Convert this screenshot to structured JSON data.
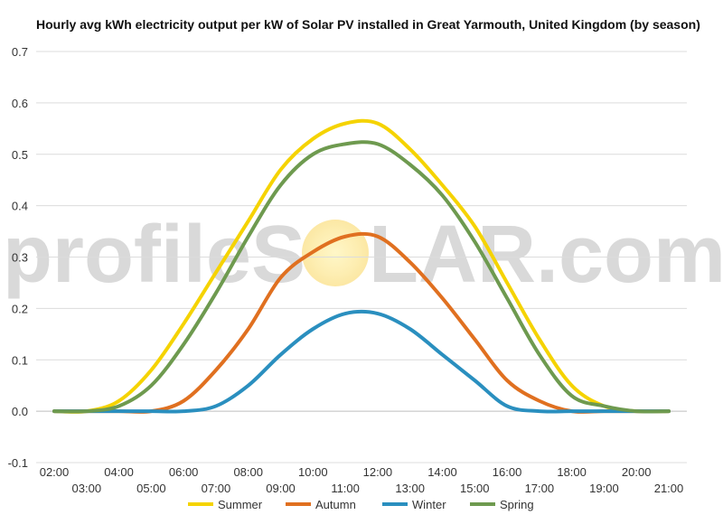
{
  "chart_data": {
    "type": "line",
    "title": "Hourly avg kWh electricity output per kW of Solar PV installed in Great Yarmouth, United Kingdom (by season)",
    "xlabel": "",
    "ylabel": "",
    "ylim": [
      -0.1,
      0.7
    ],
    "yticks": [
      "0.7",
      "0.6",
      "0.5",
      "0.4",
      "0.3",
      "0.2",
      "0.1",
      "0.0",
      "-0.1"
    ],
    "ytick_values": [
      0.7,
      0.6,
      0.5,
      0.4,
      0.3,
      0.2,
      0.1,
      0.0,
      -0.1
    ],
    "x": [
      "02:00",
      "03:00",
      "04:00",
      "05:00",
      "06:00",
      "07:00",
      "08:00",
      "09:00",
      "10:00",
      "11:00",
      "12:00",
      "13:00",
      "14:00",
      "15:00",
      "16:00",
      "17:00",
      "18:00",
      "19:00",
      "20:00",
      "21:00"
    ],
    "grid": true,
    "legend_position": "bottom",
    "series": [
      {
        "name": "Summer",
        "color": "#f5d300",
        "values": [
          0.0,
          0.0,
          0.02,
          0.08,
          0.17,
          0.27,
          0.37,
          0.47,
          0.53,
          0.56,
          0.56,
          0.51,
          0.44,
          0.36,
          0.25,
          0.14,
          0.05,
          0.01,
          0.0,
          0.0
        ]
      },
      {
        "name": "Autumn",
        "color": "#e07020",
        "values": [
          0.0,
          0.0,
          0.0,
          0.0,
          0.02,
          0.08,
          0.16,
          0.26,
          0.31,
          0.34,
          0.34,
          0.29,
          0.22,
          0.14,
          0.06,
          0.02,
          0.0,
          0.0,
          0.0,
          0.0
        ]
      },
      {
        "name": "Winter",
        "color": "#2a8fbf",
        "values": [
          0.0,
          0.0,
          0.0,
          0.0,
          0.0,
          0.01,
          0.05,
          0.11,
          0.16,
          0.19,
          0.19,
          0.16,
          0.11,
          0.06,
          0.01,
          0.0,
          0.0,
          0.0,
          0.0,
          0.0
        ]
      },
      {
        "name": "Spring",
        "color": "#6e9a4f",
        "values": [
          0.0,
          0.0,
          0.01,
          0.05,
          0.13,
          0.23,
          0.34,
          0.44,
          0.5,
          0.52,
          0.52,
          0.48,
          0.42,
          0.33,
          0.22,
          0.11,
          0.03,
          0.01,
          0.0,
          0.0
        ]
      }
    ]
  },
  "watermark": {
    "left": "profileS",
    "right": "LAR.com"
  }
}
